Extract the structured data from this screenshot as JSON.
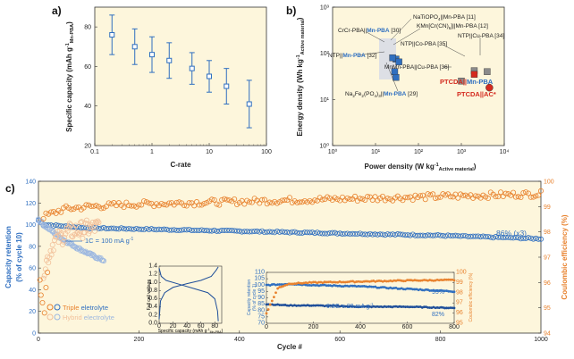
{
  "colors": {
    "blue": "#2f6fc0",
    "orange": "#e8822e",
    "light_blue": "#9db8e0",
    "light_orange": "#f2c09a",
    "red": "#d42a1e",
    "gray": "#8a8a8a",
    "panel_bg": "#fdf6dc"
  },
  "chart_data": [
    {
      "id": "a",
      "panel_label": "a)",
      "type": "scatter",
      "xscale": "log",
      "xlabel": "C-rate",
      "ylabel_main": "Specific capacity (mAh g",
      "ylabel_sup": "-1",
      "ylabel_sub": "Mn-PBA",
      "ylabel_close": ")",
      "xlim": [
        0.1,
        100
      ],
      "ylim": [
        20,
        90
      ],
      "xticks": [
        0.1,
        1,
        10,
        100
      ],
      "xtick_labels": [
        "0.1",
        "1",
        "10",
        "100"
      ],
      "yticks": [
        20,
        40,
        60,
        80
      ],
      "ytick_labels": [
        "20",
        "40",
        "60",
        "80"
      ],
      "x": [
        0.2,
        0.5,
        1,
        2,
        5,
        10,
        20,
        50
      ],
      "y": [
        76,
        70,
        66,
        63,
        59,
        55,
        50,
        41
      ],
      "err": [
        10,
        9,
        9,
        9,
        8,
        8,
        9,
        12
      ]
    },
    {
      "id": "b",
      "panel_label": "b)",
      "type": "scatter",
      "xscale": "log",
      "yscale": "log",
      "xlabel_main": "Power density (W kg",
      "xlabel_sup": "-1",
      "xlabel_sub": "Active material",
      "xlabel_close": ")",
      "ylabel_main": "Energy density (Wh kg",
      "ylabel_sup": "-1",
      "ylabel_sub": "Active material",
      "ylabel_close": ")",
      "xlim": [
        1,
        10000
      ],
      "ylim": [
        1,
        1000
      ],
      "xtick_labels": [
        "10⁰",
        "10¹",
        "10²",
        "10³",
        "10⁴"
      ],
      "ytick_labels": [
        "10⁰",
        "10¹",
        "10²",
        "10³"
      ],
      "points": [
        {
          "name": "NaTiOPO4||Mn-PBA [11]",
          "x": 30,
          "y": 75,
          "color": "#2f6fc0",
          "marker": "square"
        },
        {
          "name": "KMn[Cr(CN)6]||Mn-PBA [12]",
          "x": 35,
          "y": 65,
          "color": "#2f6fc0",
          "marker": "square"
        },
        {
          "name": "CrCr-PBA||Mn-PBA [30]",
          "x": 25,
          "y": 80,
          "color": "#2f6fc0",
          "marker": "square"
        },
        {
          "name": "NTP||Mn-PBA [32]",
          "x": 28,
          "y": 40,
          "color": "#2f6fc0",
          "marker": "square"
        },
        {
          "name": "Na2Fe2(PO4)3||Mn-PBA [29]",
          "x": 30,
          "y": 30,
          "color": "#2f6fc0",
          "marker": "square"
        },
        {
          "name": "NTP||Cu-PBA [34]",
          "x": 4000,
          "y": 40,
          "color": "#8a8a8a",
          "marker": "square"
        },
        {
          "name": "NTP||Co-PBA [35]",
          "x": 2000,
          "y": 42,
          "color": "#8a8a8a",
          "marker": "square"
        },
        {
          "name": "MnMn-PBA||Cu-PBA [36]",
          "x": 1000,
          "y": 25,
          "color": "#8a8a8a",
          "marker": "square"
        },
        {
          "name": "PTCDA||Mn-PBA",
          "x": 2000,
          "y": 35,
          "color": "#d42a1e",
          "marker": "square"
        },
        {
          "name": "PTCDA||AC*",
          "x": 4500,
          "y": 18,
          "color": "#d42a1e",
          "marker": "circle"
        }
      ],
      "labels": {
        "natiopo": "NaTiOPO",
        "natiopo_sub": "4",
        "natiopo_rest": "||Mn-PBA [11]",
        "kmncr": "KMn[Cr(CN)",
        "kmncr_sub": "6",
        "kmncr_rest": "]||Mn-PBA [12]",
        "crcr_gray": "CrCr-PBA||",
        "crcr_blue": "Mn-PBA",
        "crcr_ref": " [30]",
        "ntp_gray": "NTP||",
        "ntp_blue": "Mn-PBA",
        "ntp_ref": " [32]",
        "nacu": "NTP||Cu-PBA [34]",
        "naco": "NTP||Co-PBA [35]",
        "mnmn": "MnMn-PBA||Cu-PBA [36]",
        "nafe_a": "Na",
        "nafe_s1": "2",
        "nafe_b": "Fe",
        "nafe_s2": "2",
        "nafe_c": "(PO",
        "nafe_s3": "4",
        "nafe_d": ")",
        "nafe_s4": "3",
        "nafe_e": "||",
        "nafe_blue": "Mn-PBA",
        "nafe_ref": " [29]",
        "ptcda_mn_red": "PTCDA||",
        "ptcda_mn_blue": "Mn-PBA",
        "ptcda_ac": "PTCDA||AC*"
      }
    },
    {
      "id": "c",
      "panel_label": "c)",
      "type": "scatter",
      "xlabel": "Cycle #",
      "ylabel_left_1": "Capacity retention",
      "ylabel_left_2": "(% of cycle 10)",
      "ylabel_right": "Coulombic efficiency (%)",
      "xlim": [
        0,
        1000
      ],
      "ylim_left": [
        0,
        140
      ],
      "ylim_right": [
        94,
        100
      ],
      "xticks": [
        0,
        200,
        400,
        600,
        800,
        1000
      ],
      "xtick_labels": [
        "0",
        "200",
        "400",
        "600",
        "800",
        "1000"
      ],
      "yticks_left": [
        0,
        20,
        40,
        60,
        80,
        100,
        120,
        140
      ],
      "ytick_labels_left": [
        "0",
        "20",
        "40",
        "60",
        "80",
        "100",
        "120",
        "140"
      ],
      "yticks_right": [
        94,
        95,
        96,
        97,
        98,
        99,
        100
      ],
      "ytick_labels_right": [
        "94",
        "95",
        "96",
        "97",
        "98",
        "99",
        "100"
      ],
      "series": [
        {
          "name": "Triple eletrolyte retention",
          "axis": "left",
          "x": [
            0,
            10,
            100,
            200,
            400,
            600,
            800,
            1000
          ],
          "y": [
            104,
            100,
            97,
            96,
            94,
            92,
            90,
            87
          ]
        },
        {
          "name": "Hybrid electrolyte retention",
          "axis": "left",
          "x": [
            0,
            10,
            30,
            50,
            80,
            110,
            130
          ],
          "y": [
            105,
            100,
            93,
            86,
            78,
            71,
            67
          ]
        },
        {
          "name": "Triple eletrolyte CE",
          "axis": "right",
          "x": [
            10,
            50,
            100,
            200,
            400,
            600,
            800,
            1000
          ],
          "y": [
            98.6,
            98.9,
            99.0,
            99.1,
            99.2,
            99.3,
            99.4,
            99.5
          ]
        },
        {
          "name": "Hybrid electrolyte CE",
          "axis": "right",
          "x": [
            10,
            30,
            60,
            90,
            120
          ],
          "y": [
            96.5,
            97.6,
            98.0,
            98.1,
            98.2
          ]
        }
      ],
      "annotations": {
        "retention_end": "86% (x3)",
        "rate_1c": "1C = 100 mA g",
        "rate_1c_sup": "-1"
      },
      "legend": {
        "triple_word": "Triple",
        "triple_rest": " eletrolyte",
        "hybrid_word": "Hybrid",
        "hybrid_rest": " electrolyte"
      }
    },
    {
      "id": "c_inset_voltage",
      "type": "line",
      "ylabel": "Full cell voltage",
      "xlabel_main": "Specific capacity (mAh g",
      "xlabel_sup": "-1",
      "xlabel_sub": "Mn-PBA",
      "xlabel_close": ")",
      "xlim": [
        0,
        90
      ],
      "ylim": [
        0,
        1.4
      ],
      "xtick_labels": [
        "0",
        "20",
        "40",
        "60",
        "80"
      ],
      "ytick_labels": [
        "0.0",
        "0.2",
        "0.4",
        "0.6",
        "0.8",
        "1.0",
        "1.2",
        "1.4"
      ],
      "series": [
        {
          "name": "charge",
          "x": [
            0,
            2,
            8,
            20,
            40,
            60,
            75,
            82,
            85
          ],
          "y": [
            0.1,
            0.55,
            0.75,
            0.88,
            0.97,
            1.05,
            1.15,
            1.3,
            1.38
          ]
        },
        {
          "name": "discharge",
          "x": [
            0,
            3,
            10,
            30,
            50,
            70,
            80,
            84,
            85
          ],
          "y": [
            1.35,
            1.15,
            1.05,
            0.95,
            0.85,
            0.75,
            0.6,
            0.3,
            0.05
          ]
        }
      ]
    },
    {
      "id": "c_inset_cycling",
      "type": "scatter",
      "ylabel_left_1": "Capacity retention",
      "ylabel_left_2": "(% of cycle 1)",
      "ylabel_right": "Coulombic efficiency (%)",
      "xlim": [
        0,
        800
      ],
      "ylim_left": [
        70,
        110
      ],
      "ylim_right": [
        95,
        100
      ],
      "xtick_labels": [
        "0",
        "200",
        "400",
        "600",
        "800"
      ],
      "ytick_labels_left": [
        "70",
        "75",
        "80",
        "85",
        "90",
        "95",
        "100",
        "105",
        "110"
      ],
      "ytick_labels_right": [
        "95",
        "96",
        "97",
        "98",
        "99",
        "100"
      ],
      "series": [
        {
          "name": "retention 0.2C upper",
          "x": [
            0,
            100,
            200,
            400,
            600,
            800
          ],
          "y": [
            100,
            101,
            100,
            99,
            97,
            95
          ]
        },
        {
          "name": "retention lower",
          "x": [
            0,
            100,
            200,
            400,
            600,
            800
          ],
          "y": [
            85,
            84,
            84,
            83,
            83,
            82
          ]
        },
        {
          "name": "CE",
          "x": [
            0,
            50,
            100,
            200,
            400,
            600,
            800
          ],
          "y": [
            96.0,
            98.5,
            98.9,
            99.0,
            99.1,
            99.2,
            99.25
          ]
        }
      ],
      "annotations": {
        "upper_end": "95%",
        "lower_end": "82%",
        "rate": "0.2C = 20 mA g",
        "rate_sup": "-1"
      }
    }
  ]
}
